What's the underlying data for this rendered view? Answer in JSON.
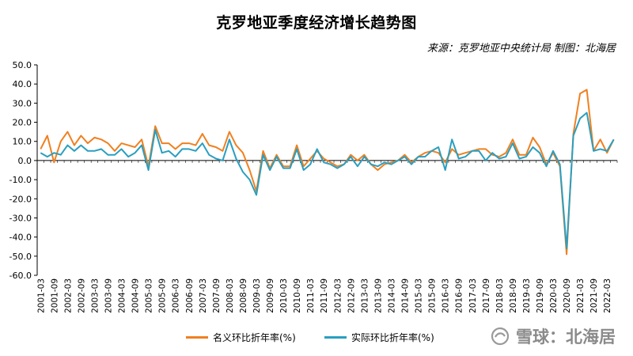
{
  "chart_data": {
    "type": "line",
    "title": "克罗地亚季度经济增长趋势图",
    "subtitle": "来源：克罗地亚中央统计局 制图：北海居",
    "xlabel": "",
    "ylabel": "",
    "ylim": [
      -60,
      50
    ],
    "yticks": [
      "50.0",
      "40.0",
      "30.0",
      "20.0",
      "10.0",
      "0.0",
      "-10.0",
      "-20.0",
      "-30.0",
      "-40.0",
      "-50.0",
      "-60.0"
    ],
    "x_tick_labels": [
      "2001-03",
      "2001-09",
      "2002-03",
      "2002-09",
      "2003-03",
      "2003-09",
      "2004-03",
      "2004-09",
      "2005-03",
      "2005-09",
      "2006-03",
      "2006-09",
      "2007-03",
      "2007-09",
      "2008-03",
      "2008-09",
      "2009-03",
      "2009-09",
      "2010-03",
      "2010-09",
      "2011-03",
      "2011-09",
      "2012-03",
      "2012-09",
      "2013-03",
      "2013-09",
      "2014-03",
      "2014-09",
      "2015-03",
      "2015-09",
      "2016-03",
      "2016-09",
      "2017-03",
      "2017-09",
      "2018-03",
      "2018-09",
      "2019-03",
      "2019-09",
      "2020-03",
      "2020-09",
      "2021-03",
      "2021-09",
      "2022-03"
    ],
    "grid": false,
    "legend_position": "bottom",
    "series": [
      {
        "name": "名义环比折年率(%)",
        "color": "#f08020",
        "values": [
          6,
          13,
          -1,
          10,
          15,
          8,
          13,
          9,
          12,
          11,
          9,
          5,
          9,
          8,
          7,
          11,
          -3,
          18,
          9,
          9,
          6,
          9,
          9,
          8,
          14,
          8,
          7,
          5,
          15,
          8,
          4,
          -5,
          -16,
          5,
          -4,
          3,
          -3,
          -3,
          8,
          -3,
          1,
          5,
          1,
          -1,
          -3,
          -2,
          3,
          0,
          3,
          -2,
          -5,
          -2,
          -1,
          0,
          3,
          -1,
          2,
          4,
          5,
          4,
          -1,
          6,
          3,
          4,
          5,
          6,
          6,
          3,
          2,
          4,
          11,
          3,
          3,
          12,
          7,
          -2,
          4,
          -3,
          -49,
          14,
          35,
          37,
          5,
          11,
          4,
          11
        ]
      },
      {
        "name": "实际环比折年率(%)",
        "color": "#2a9fc0",
        "values": [
          4,
          2,
          4,
          3,
          8,
          5,
          8,
          5,
          5,
          6,
          3,
          3,
          6,
          2,
          4,
          8,
          -5,
          16,
          4,
          5,
          2,
          6,
          6,
          5,
          9,
          3,
          1,
          0,
          11,
          1,
          -6,
          -10,
          -18,
          3,
          -5,
          2,
          -4,
          -4,
          6,
          -5,
          -2,
          6,
          -1,
          -2,
          -4,
          -2,
          2,
          -3,
          2,
          -2,
          -3,
          -1,
          -2,
          0,
          2,
          -2,
          2,
          2,
          5,
          7,
          -5,
          11,
          1,
          2,
          5,
          5,
          0,
          4,
          1,
          2,
          9,
          1,
          2,
          7,
          4,
          -3,
          5,
          -2,
          -46,
          13,
          22,
          25,
          5,
          6,
          5,
          11
        ]
      }
    ]
  },
  "watermark": {
    "brand": "雪球",
    "separator": "：",
    "author": "北海居"
  }
}
